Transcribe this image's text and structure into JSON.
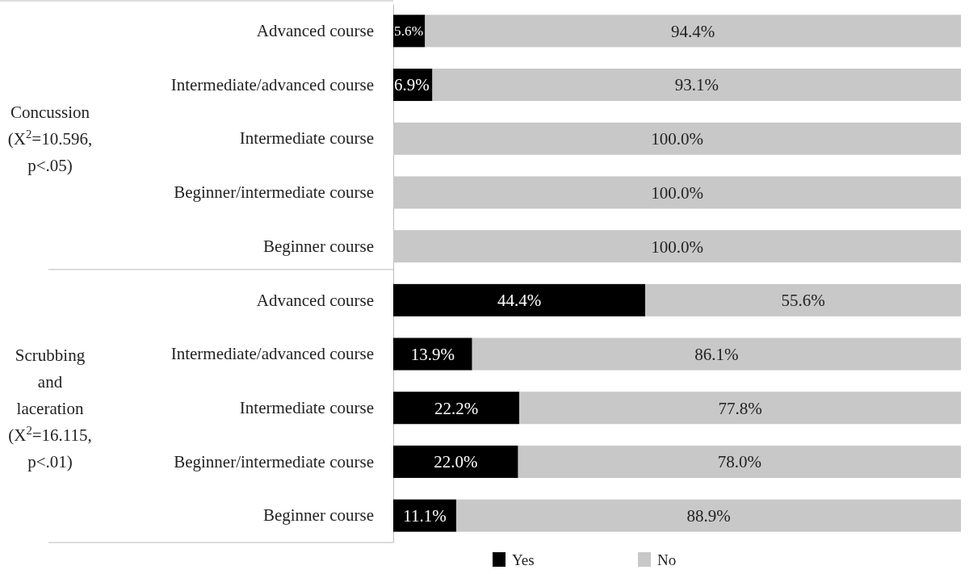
{
  "chart_data": {
    "type": "bar",
    "orientation": "horizontal",
    "stacked": true,
    "categories": [
      "Advanced course",
      "Intermediate/advanced course",
      "Intermediate course",
      "Beginner/intermediate course",
      "Beginner course",
      "Advanced course",
      "Intermediate/advanced course",
      "Intermediate course",
      "Beginner/intermediate course",
      "Beginner course"
    ],
    "series": [
      {
        "name": "Yes",
        "color": "#000000",
        "values": [
          5.6,
          6.9,
          0,
          0,
          0,
          44.4,
          13.9,
          22.2,
          22.0,
          11.1
        ],
        "value_labels": [
          "5.6%",
          "6.9%",
          null,
          null,
          null,
          "44.4%",
          "13.9%",
          "22.2%",
          "22.0%",
          "11.1%"
        ]
      },
      {
        "name": "No",
        "color": "#c8c8c8",
        "values": [
          94.4,
          93.1,
          100,
          100,
          100,
          55.6,
          86.1,
          77.8,
          78.0,
          88.9
        ],
        "value_labels": [
          "94.4%",
          "93.1%",
          "100.0%",
          "100.0%",
          "100.0%",
          "55.6%",
          "86.1%",
          "77.8%",
          "78.0%",
          "88.9%"
        ]
      }
    ],
    "xlim": [
      0,
      100
    ],
    "tick_labels": "y",
    "legend": "bottom",
    "annotations": [
      "Concussion (X$^{2}$=10.596, p<.05)",
      "Scrubbing and laceration (X$^{2}$=16.115, p<.01)"
    ]
  }
}
